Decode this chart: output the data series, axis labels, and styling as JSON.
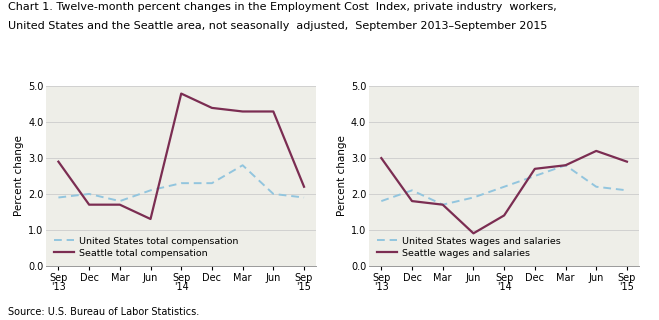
{
  "title_line1": "Chart 1. Twelve-month percent changes in the Employment Cost  Index, private industry  workers,",
  "title_line2": "United States and the Seattle area, not seasonally  adjusted,  September 2013–September 2015",
  "source": "Source: U.S. Bureau of Labor Statistics.",
  "ylabel": "Percent change",
  "xlabels": [
    "Sep\n'13",
    "Dec",
    "Mar",
    "Jun",
    "Sep\n'14",
    "Dec",
    "Mar",
    "Jun",
    "Sep\n'15"
  ],
  "ylim": [
    0.0,
    5.0
  ],
  "yticks": [
    0.0,
    1.0,
    2.0,
    3.0,
    4.0,
    5.0
  ],
  "left_us": [
    1.9,
    2.0,
    1.8,
    2.1,
    2.3,
    2.3,
    2.8,
    2.0,
    1.9
  ],
  "left_seattle": [
    2.9,
    1.7,
    1.7,
    1.3,
    4.8,
    4.4,
    4.3,
    4.3,
    2.2
  ],
  "left_legend_us": "United States total compensation",
  "left_legend_seattle": "Seattle total compensation",
  "right_us": [
    1.8,
    2.1,
    1.7,
    1.9,
    2.2,
    2.5,
    2.8,
    2.2,
    2.1
  ],
  "right_seattle": [
    3.0,
    1.8,
    1.7,
    0.9,
    1.4,
    2.7,
    2.8,
    3.2,
    2.9
  ],
  "right_legend_us": "United States wages and salaries",
  "right_legend_seattle": "Seattle wages and salaries",
  "us_color": "#92C5DE",
  "seattle_color": "#7B2D52",
  "bg_color": "#EEEEE8",
  "grid_color": "#CCCCCC",
  "title_fontsize": 8.0,
  "label_fontsize": 7.5,
  "tick_fontsize": 7.0,
  "legend_fontsize": 6.8,
  "source_fontsize": 7.0
}
